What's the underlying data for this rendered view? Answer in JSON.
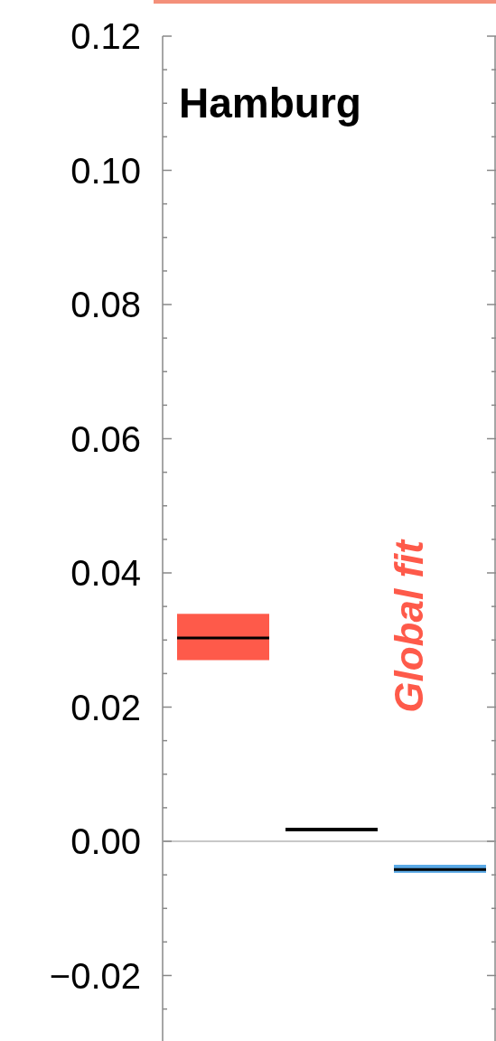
{
  "chart_data": {
    "type": "box",
    "title": "Hamburg",
    "categories": [
      null,
      null,
      null
    ],
    "boxes": [
      {
        "low": 0.027,
        "q1": 0.027,
        "median": 0.0303,
        "q3": 0.0339,
        "high": 0.0339
      },
      {
        "low": 0.0015,
        "q1": 0.0015,
        "median": 0.00175,
        "q3": 0.002,
        "high": 0.002
      },
      {
        "low": -0.0047,
        "q1": -0.0047,
        "median": -0.0042,
        "q3": -0.0035,
        "high": -0.0035
      }
    ],
    "colors": [
      "#fe5a4a",
      "#000000",
      "#5aa9e6"
    ],
    "ylim": [
      -0.03,
      0.12
    ],
    "yticks": [
      {
        "value": -0.02,
        "label": "−0.02"
      },
      {
        "value": -0.025,
        "label": null
      },
      {
        "value": -0.015,
        "label": null
      },
      {
        "value": -0.01,
        "label": null
      },
      {
        "value": -0.005,
        "label": null
      },
      {
        "value": 0,
        "label": "0.00"
      },
      {
        "value": 0.005,
        "label": null
      },
      {
        "value": 0.01,
        "label": null
      },
      {
        "value": 0.015,
        "label": null
      },
      {
        "value": 0.02,
        "label": "0.02"
      },
      {
        "value": 0.025,
        "label": null
      },
      {
        "value": 0.03,
        "label": null
      },
      {
        "value": 0.035,
        "label": null
      },
      {
        "value": 0.04,
        "label": "0.04"
      },
      {
        "value": 0.045,
        "label": null
      },
      {
        "value": 0.05,
        "label": null
      },
      {
        "value": 0.055,
        "label": null
      },
      {
        "value": 0.06,
        "label": "0.06"
      },
      {
        "value": 0.065,
        "label": null
      },
      {
        "value": 0.07,
        "label": null
      },
      {
        "value": 0.075,
        "label": null
      },
      {
        "value": 0.08,
        "label": "0.08"
      },
      {
        "value": 0.085,
        "label": null
      },
      {
        "value": 0.09,
        "label": null
      },
      {
        "value": 0.095,
        "label": null
      },
      {
        "value": 0.1,
        "label": "0.10"
      },
      {
        "value": 0.105,
        "label": null
      },
      {
        "value": 0.11,
        "label": null
      },
      {
        "value": 0.115,
        "label": null
      },
      {
        "value": 0.12,
        "label": "0.12"
      }
    ],
    "ref_lines": [
      {
        "axis": "y",
        "value": 0,
        "color": "#c8c8c8"
      }
    ],
    "annotations": [
      "Global fit"
    ],
    "tick_labels": "y",
    "grid": false
  }
}
